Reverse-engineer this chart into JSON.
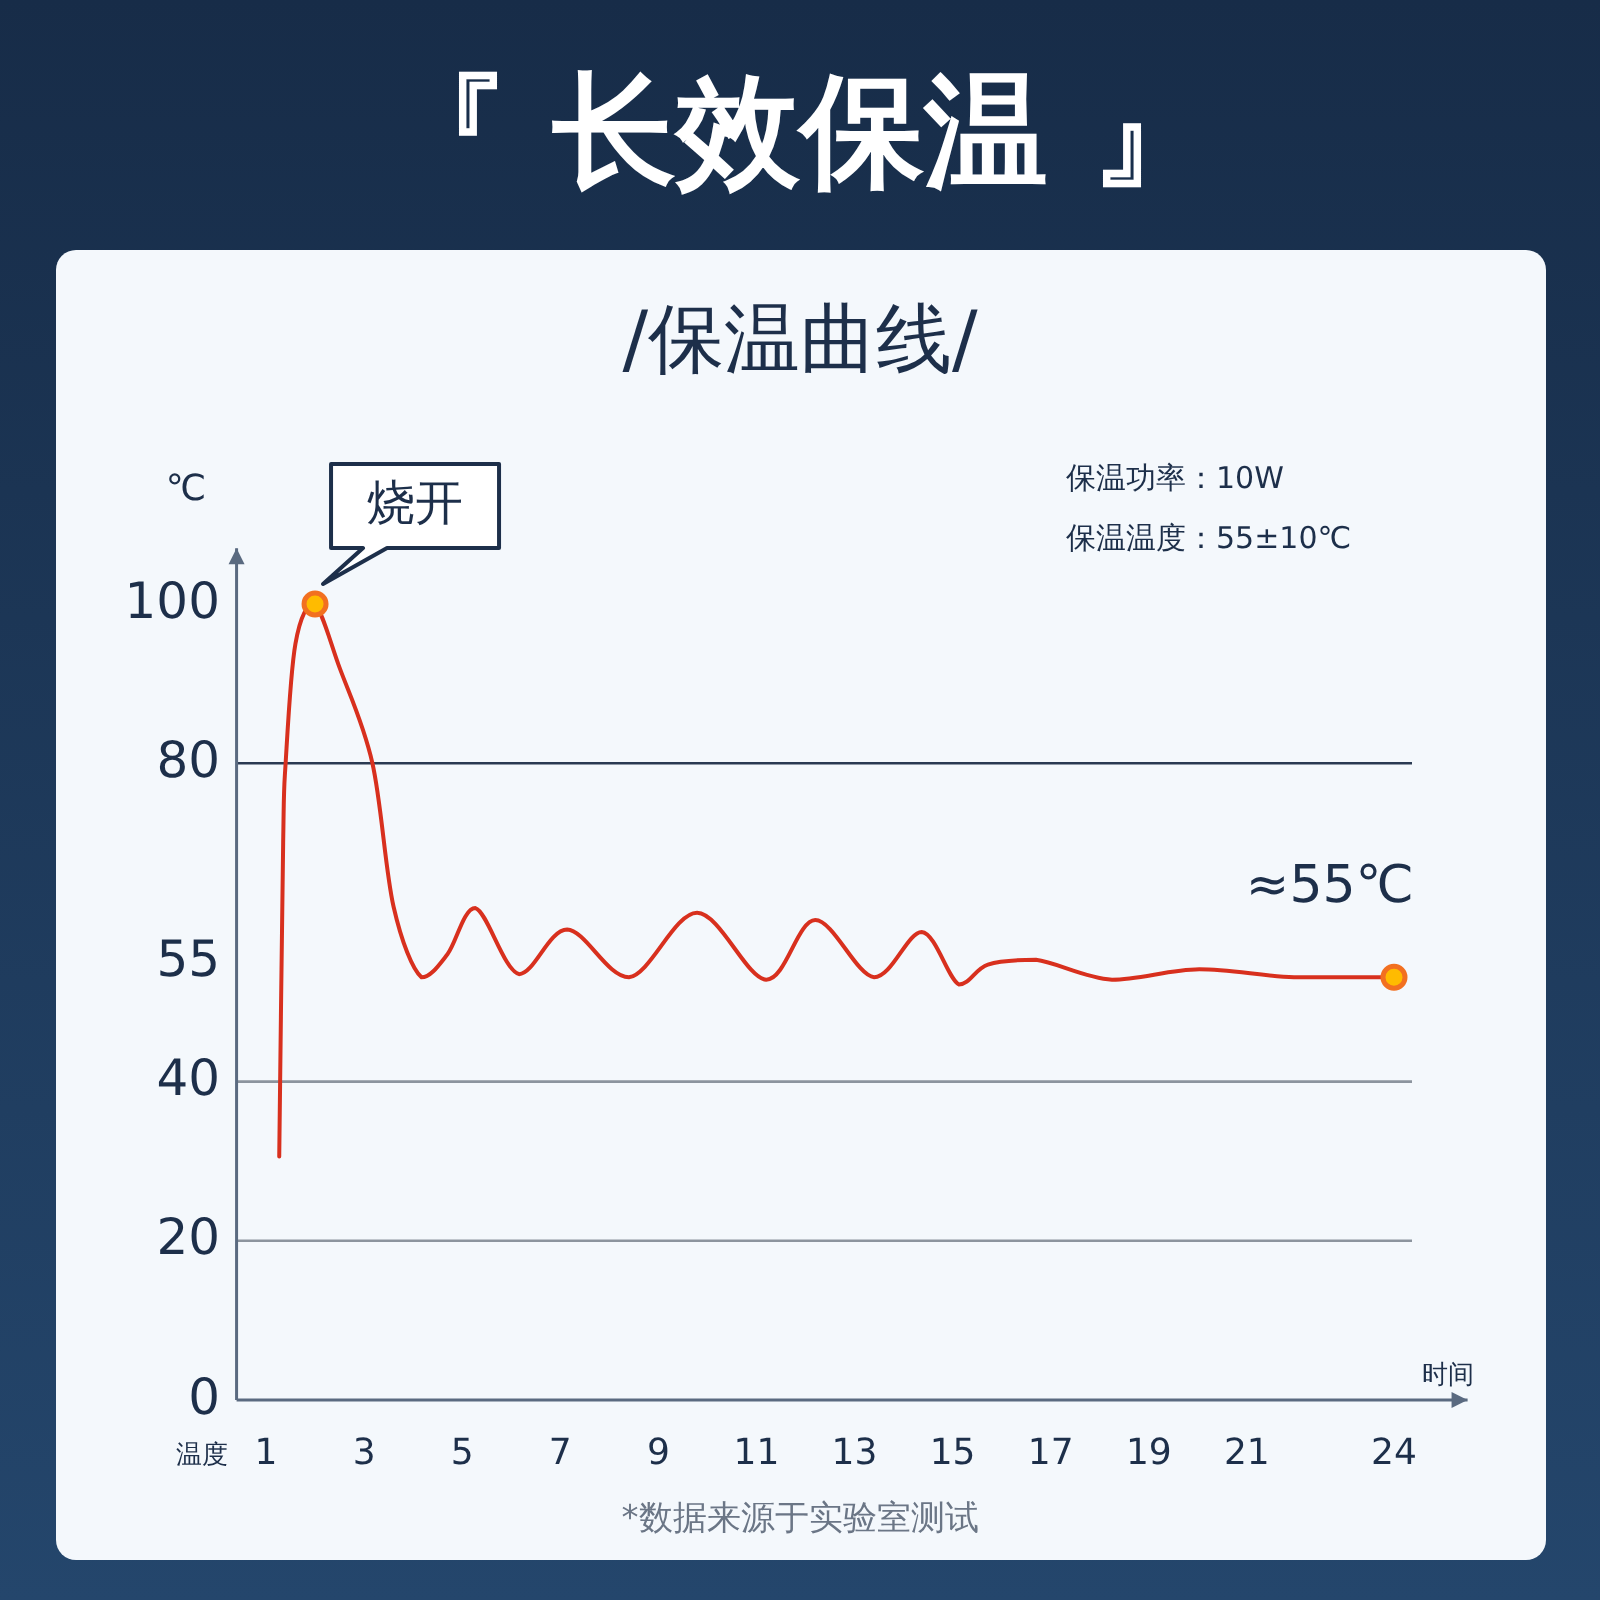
{
  "chart_data": {
    "type": "line",
    "title": "『 长效保温 』",
    "subtitle": "/保温曲线/",
    "xlabel": "时间",
    "ylabel": "温度",
    "x": [
      1.27,
      1.35,
      1.4,
      1.6,
      1.98,
      2.5,
      3.17,
      3.6,
      4.17,
      4.7,
      5.27,
      6.16,
      7.14,
      8.4,
      9.79,
      11.2,
      12.2,
      13.4,
      14.37,
      15.13,
      15.72,
      16.7,
      18.25,
      20.03,
      21.96,
      24
    ],
    "series": [
      {
        "color": "#d8301e",
        "values": [
          30.6,
          70,
          80,
          95,
          100,
          92,
          80,
          62,
          53.1,
          56,
          61.8,
          53.5,
          59.1,
          53.1,
          61.2,
          52.8,
          60.3,
          53.1,
          58.8,
          52.2,
          54.7,
          55.3,
          52.8,
          54.1,
          53.1,
          53.1
        ]
      }
    ],
    "xlim": [
      0.4,
      25.5
    ],
    "xticks": [
      1,
      3,
      5,
      7,
      9,
      11,
      13,
      15,
      17,
      19,
      21,
      24
    ],
    "ylim": [
      0,
      107
    ],
    "yticks": [
      0,
      20,
      40,
      55,
      80,
      100
    ],
    "ref_lines": [
      {
        "axis": "y",
        "value": 80,
        "color": "#2a3a52"
      },
      {
        "axis": "y",
        "value": 40,
        "color": "#8c949e"
      },
      {
        "axis": "y",
        "value": 20,
        "color": "#8c949e"
      }
    ],
    "marker": "none",
    "annotations": [
      "℃",
      {
        "text": "烧开",
        "x": 2,
        "y": 100
      },
      {
        "text": "≈55℃",
        "x": 24,
        "y": 53.1
      },
      "保温功率：10W",
      "保温温度：55±10℃",
      "*数据来源于实验室测试"
    ]
  }
}
